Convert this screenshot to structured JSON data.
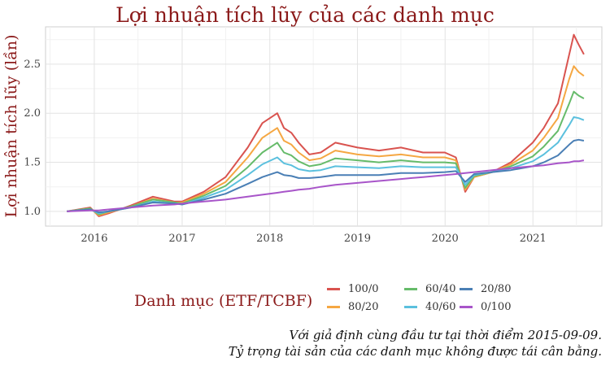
{
  "chart_data": {
    "type": "line",
    "title": "Lợi nhuận tích lũy của các danh mục",
    "xlabel": "",
    "ylabel": "Lợi nhuận tích lũy (lần)",
    "x_ticks": [
      "2016",
      "2017",
      "2018",
      "2019",
      "2020",
      "2021"
    ],
    "y_ticks": [
      "1.0",
      "1.5",
      "2.0",
      "2.5"
    ],
    "xlim": [
      "2015-06-12",
      "2021-10-15"
    ],
    "ylim": [
      0.85,
      2.88
    ],
    "grid": true,
    "legend": {
      "title": "Danh mục (ETF/TCBF)",
      "placement": "bottom"
    },
    "x": [
      "2015-09-09",
      "2015-12-15",
      "2016-01-20",
      "2016-03-01",
      "2016-06-01",
      "2016-09-01",
      "2016-12-01",
      "2017-01-01",
      "2017-04-01",
      "2017-07-01",
      "2017-10-01",
      "2017-12-01",
      "2018-02-01",
      "2018-03-01",
      "2018-04-01",
      "2018-05-01",
      "2018-06-15",
      "2018-08-01",
      "2018-10-01",
      "2019-01-01",
      "2019-04-01",
      "2019-07-01",
      "2019-10-01",
      "2019-12-31",
      "2020-02-15",
      "2020-03-25",
      "2020-05-01",
      "2020-07-15",
      "2020-10-01",
      "2020-12-31",
      "2021-02-15",
      "2021-04-15",
      "2021-06-01",
      "2021-06-20",
      "2021-07-10",
      "2021-08-01"
    ],
    "series": [
      {
        "name": "100/0",
        "color": "#d9534f",
        "values": [
          1.0,
          1.04,
          0.95,
          0.98,
          1.06,
          1.15,
          1.1,
          1.1,
          1.2,
          1.35,
          1.65,
          1.9,
          2.0,
          1.85,
          1.8,
          1.7,
          1.58,
          1.6,
          1.7,
          1.65,
          1.62,
          1.65,
          1.6,
          1.6,
          1.55,
          1.2,
          1.35,
          1.4,
          1.5,
          1.7,
          1.85,
          2.1,
          2.6,
          2.8,
          2.7,
          2.6
        ]
      },
      {
        "name": "80/20",
        "color": "#f5a742",
        "values": [
          1.0,
          1.03,
          0.96,
          0.99,
          1.05,
          1.13,
          1.09,
          1.09,
          1.18,
          1.3,
          1.55,
          1.75,
          1.85,
          1.72,
          1.68,
          1.6,
          1.52,
          1.54,
          1.62,
          1.58,
          1.56,
          1.58,
          1.55,
          1.55,
          1.52,
          1.22,
          1.35,
          1.4,
          1.48,
          1.62,
          1.75,
          1.95,
          2.35,
          2.48,
          2.42,
          2.38
        ]
      },
      {
        "name": "60/40",
        "color": "#66bb6a",
        "values": [
          1.0,
          1.03,
          0.97,
          1.0,
          1.05,
          1.12,
          1.09,
          1.08,
          1.16,
          1.26,
          1.45,
          1.6,
          1.7,
          1.6,
          1.57,
          1.51,
          1.46,
          1.48,
          1.54,
          1.52,
          1.5,
          1.52,
          1.5,
          1.5,
          1.49,
          1.24,
          1.36,
          1.4,
          1.46,
          1.56,
          1.66,
          1.82,
          2.1,
          2.22,
          2.18,
          2.15
        ]
      },
      {
        "name": "40/60",
        "color": "#5bc0de",
        "values": [
          1.0,
          1.02,
          0.98,
          1.0,
          1.04,
          1.1,
          1.08,
          1.07,
          1.14,
          1.22,
          1.37,
          1.48,
          1.55,
          1.49,
          1.47,
          1.43,
          1.41,
          1.42,
          1.46,
          1.45,
          1.44,
          1.46,
          1.45,
          1.45,
          1.45,
          1.27,
          1.37,
          1.4,
          1.44,
          1.51,
          1.58,
          1.7,
          1.88,
          1.96,
          1.95,
          1.93
        ]
      },
      {
        "name": "20/80",
        "color": "#4a7fb5",
        "values": [
          1.0,
          1.02,
          0.99,
          1.0,
          1.04,
          1.09,
          1.08,
          1.07,
          1.12,
          1.18,
          1.28,
          1.35,
          1.4,
          1.37,
          1.36,
          1.34,
          1.34,
          1.35,
          1.37,
          1.37,
          1.37,
          1.39,
          1.39,
          1.4,
          1.41,
          1.3,
          1.38,
          1.4,
          1.42,
          1.46,
          1.5,
          1.57,
          1.68,
          1.72,
          1.73,
          1.72
        ]
      },
      {
        "name": "0/100",
        "color": "#a855c9",
        "values": [
          1.0,
          1.01,
          1.01,
          1.02,
          1.04,
          1.06,
          1.07,
          1.08,
          1.1,
          1.12,
          1.15,
          1.17,
          1.19,
          1.2,
          1.21,
          1.22,
          1.23,
          1.25,
          1.27,
          1.29,
          1.31,
          1.33,
          1.35,
          1.37,
          1.38,
          1.39,
          1.4,
          1.42,
          1.44,
          1.46,
          1.47,
          1.49,
          1.5,
          1.51,
          1.51,
          1.52
        ]
      }
    ]
  },
  "caption": {
    "line1": "Với giả định cùng đầu tư tại thời điểm 2015-09-09.",
    "line2": "Tỷ trọng tài sản của các danh mục không được tái cân bằng."
  }
}
